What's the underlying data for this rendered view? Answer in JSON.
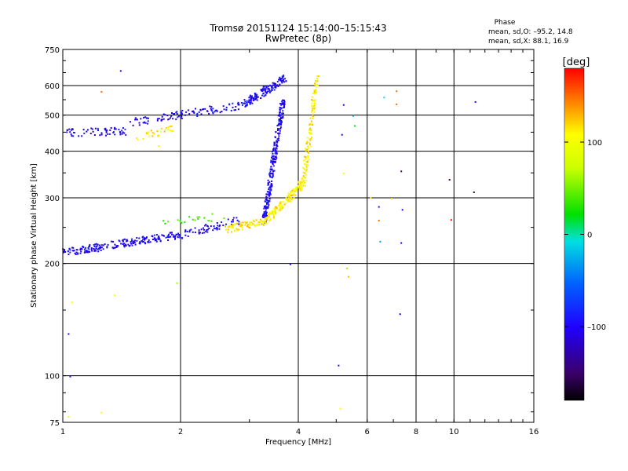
{
  "header": {
    "title_line1": "Tromsø 20151124 15:14:00–15:15:43",
    "title_line2": "RwPretec (8p)",
    "phase_label": "Phase",
    "stat_o": "mean, sd,O: –95.2, 14.8",
    "stat_x": "mean, sd,X:  88.1, 16.9"
  },
  "colorbar": {
    "unit": "[deg]",
    "ticks": [
      {
        "value": 100,
        "label": "100"
      },
      {
        "value": 0,
        "label": "0"
      },
      {
        "value": -100,
        "label": "–100"
      }
    ],
    "range": [
      -180,
      180
    ]
  },
  "chart_data": {
    "type": "scatter",
    "xlabel": "Frequency [MHz]",
    "ylabel": "Stationary phase Virtual Height [km]",
    "x_scale": "log",
    "y_scale": "log",
    "xlim": [
      1,
      16
    ],
    "ylim": [
      75,
      750
    ],
    "grid": true,
    "x_ticks": [
      {
        "value": 1,
        "label": "1",
        "grid": false
      },
      {
        "value": 2,
        "label": "2",
        "grid": true
      },
      {
        "value": 4,
        "label": "4",
        "grid": true
      },
      {
        "value": 6,
        "label": "6",
        "grid": true
      },
      {
        "value": 8,
        "label": "8",
        "grid": true
      },
      {
        "value": 10,
        "label": "10",
        "grid": true
      },
      {
        "value": 16,
        "label": "16",
        "grid": false
      }
    ],
    "y_ticks": [
      {
        "value": 75,
        "label": "75",
        "grid": false
      },
      {
        "value": 100,
        "label": "100",
        "grid": true
      },
      {
        "value": 200,
        "label": "200",
        "grid": true
      },
      {
        "value": 300,
        "label": "300",
        "grid": true
      },
      {
        "value": 400,
        "label": "400",
        "grid": true
      },
      {
        "value": 500,
        "label": "500",
        "grid": true
      },
      {
        "value": 600,
        "label": "600",
        "grid": true
      },
      {
        "value": 750,
        "label": "750",
        "grid": false
      }
    ],
    "series": [
      {
        "color_phase": -100,
        "segments": [
          {
            "f0": 1.0,
            "f1": 2.0,
            "h0": 215,
            "h1": 240,
            "n": 220
          },
          {
            "f0": 2.0,
            "f1": 2.8,
            "h0": 240,
            "h1": 262,
            "n": 60
          },
          {
            "f0": 1.0,
            "f1": 1.45,
            "h0": 450,
            "h1": 455,
            "n": 60
          },
          {
            "f0": 1.45,
            "f1": 2.9,
            "h0": 478,
            "h1": 535,
            "n": 110
          },
          {
            "f0": 2.9,
            "f1": 3.7,
            "h0": 540,
            "h1": 630,
            "n": 140
          },
          {
            "f0": 3.25,
            "f1": 3.65,
            "h0": 260,
            "h1": 560,
            "n": 260
          }
        ]
      },
      {
        "color_phase": 110,
        "segments": [
          {
            "f0": 2.6,
            "f1": 3.3,
            "h0": 248,
            "h1": 262,
            "n": 80
          },
          {
            "f0": 3.3,
            "f1": 4.1,
            "h0": 262,
            "h1": 330,
            "n": 140
          },
          {
            "f0": 4.1,
            "f1": 4.45,
            "h0": 330,
            "h1": 640,
            "n": 130
          },
          {
            "f0": 1.55,
            "f1": 1.9,
            "h0": 440,
            "h1": 460,
            "n": 30
          }
        ]
      },
      {
        "color_phase": 40,
        "segments": [
          {
            "f0": 1.7,
            "f1": 2.6,
            "h0": 255,
            "h1": 270,
            "n": 20
          }
        ]
      }
    ],
    "isolated_points": [
      {
        "f": 1.4,
        "h": 660,
        "p": -100
      },
      {
        "f": 1.25,
        "h": 580,
        "p": 150
      },
      {
        "f": 1.03,
        "h": 130,
        "p": -100
      },
      {
        "f": 1.04,
        "h": 100,
        "p": -100
      },
      {
        "f": 1.03,
        "h": 78,
        "p": 100
      },
      {
        "f": 1.05,
        "h": 158,
        "p": 100
      },
      {
        "f": 1.35,
        "h": 165,
        "p": 110
      },
      {
        "f": 1.25,
        "h": 80,
        "p": 110
      },
      {
        "f": 1.75,
        "h": 415,
        "p": 110
      },
      {
        "f": 1.95,
        "h": 178,
        "p": 60
      },
      {
        "f": 5.05,
        "h": 107,
        "p": -110
      },
      {
        "f": 5.1,
        "h": 82,
        "p": 110
      },
      {
        "f": 5.2,
        "h": 350,
        "p": 100
      },
      {
        "f": 5.3,
        "h": 195,
        "p": 60
      },
      {
        "f": 5.35,
        "h": 185,
        "p": 130
      },
      {
        "f": 5.5,
        "h": 500,
        "p": -30
      },
      {
        "f": 5.55,
        "h": 470,
        "p": 20
      },
      {
        "f": 5.15,
        "h": 445,
        "p": -110
      },
      {
        "f": 5.2,
        "h": 535,
        "p": -100
      },
      {
        "f": 6.4,
        "h": 285,
        "p": -100
      },
      {
        "f": 6.4,
        "h": 262,
        "p": 150
      },
      {
        "f": 6.45,
        "h": 230,
        "p": -30
      },
      {
        "f": 6.6,
        "h": 560,
        "p": -10
      },
      {
        "f": 6.9,
        "h": 300,
        "p": 120
      },
      {
        "f": 7.1,
        "h": 582,
        "p": 150
      },
      {
        "f": 7.1,
        "h": 537,
        "p": 150
      },
      {
        "f": 7.3,
        "h": 355,
        "p": -150
      },
      {
        "f": 7.35,
        "h": 280,
        "p": -100
      },
      {
        "f": 7.3,
        "h": 228,
        "p": -100
      },
      {
        "f": 7.25,
        "h": 147,
        "p": -110
      },
      {
        "f": 9.7,
        "h": 337,
        "p": -150
      },
      {
        "f": 9.8,
        "h": 263,
        "p": 175
      },
      {
        "f": 11.2,
        "h": 312,
        "p": -160
      },
      {
        "f": 11.3,
        "h": 545,
        "p": -100
      },
      {
        "f": 3.8,
        "h": 200,
        "p": -100
      },
      {
        "f": 6.1,
        "h": 302,
        "p": 110
      }
    ]
  }
}
